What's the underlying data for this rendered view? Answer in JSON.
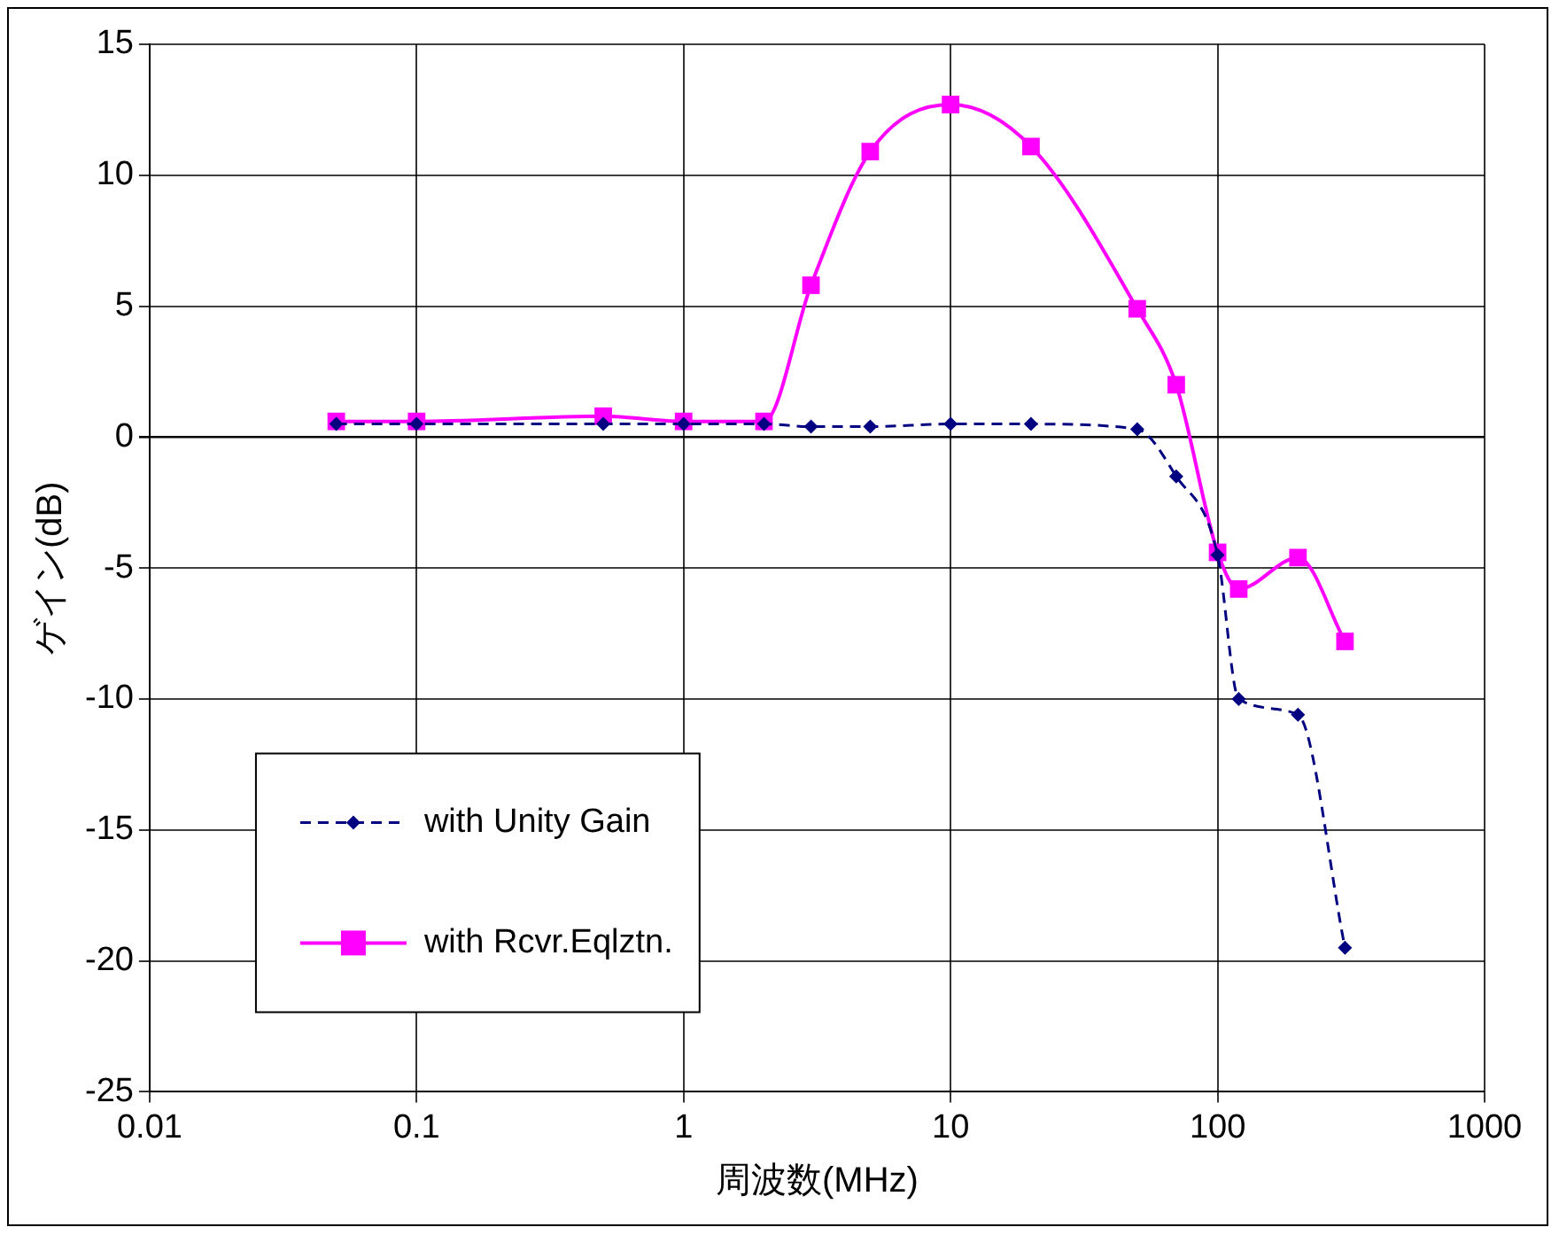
{
  "chart_data": {
    "type": "line",
    "xlabel": "周波数(MHz)",
    "ylabel": "ゲイン(dB)",
    "log": "x",
    "xlim": [
      0.01,
      1000
    ],
    "xticks": [
      0.01,
      0.1,
      1,
      10,
      100,
      1000
    ],
    "ylim": [
      -25,
      15
    ],
    "yticks": [
      -25,
      -20,
      -15,
      -10,
      -5,
      0,
      5,
      10,
      15
    ],
    "grid": true,
    "legend": "bottom left",
    "series": [
      {
        "name": "with Unity Gain",
        "color": "#000080",
        "marker": "diamond",
        "line_style": "dashed",
        "x": [
          0.05,
          0.1,
          0.5,
          1,
          2,
          3,
          5,
          10,
          20,
          50,
          70,
          100,
          120,
          200,
          300
        ],
        "values": [
          0.5,
          0.5,
          0.5,
          0.5,
          0.5,
          0.4,
          0.4,
          0.5,
          0.5,
          0.3,
          -1.5,
          -4.5,
          -10,
          -10.6,
          -19.5
        ]
      },
      {
        "name": "with Rcvr.Eqlztn.",
        "color": "#ff00ff",
        "marker": "square",
        "line_style": "solid",
        "x": [
          0.05,
          0.1,
          0.5,
          1,
          2,
          3,
          5,
          10,
          20,
          50,
          70,
          100,
          120,
          200,
          300
        ],
        "values": [
          0.6,
          0.6,
          0.8,
          0.6,
          0.6,
          5.8,
          10.9,
          12.7,
          11.1,
          4.9,
          2,
          -4.4,
          -5.8,
          -4.6,
          -7.8
        ]
      }
    ]
  }
}
